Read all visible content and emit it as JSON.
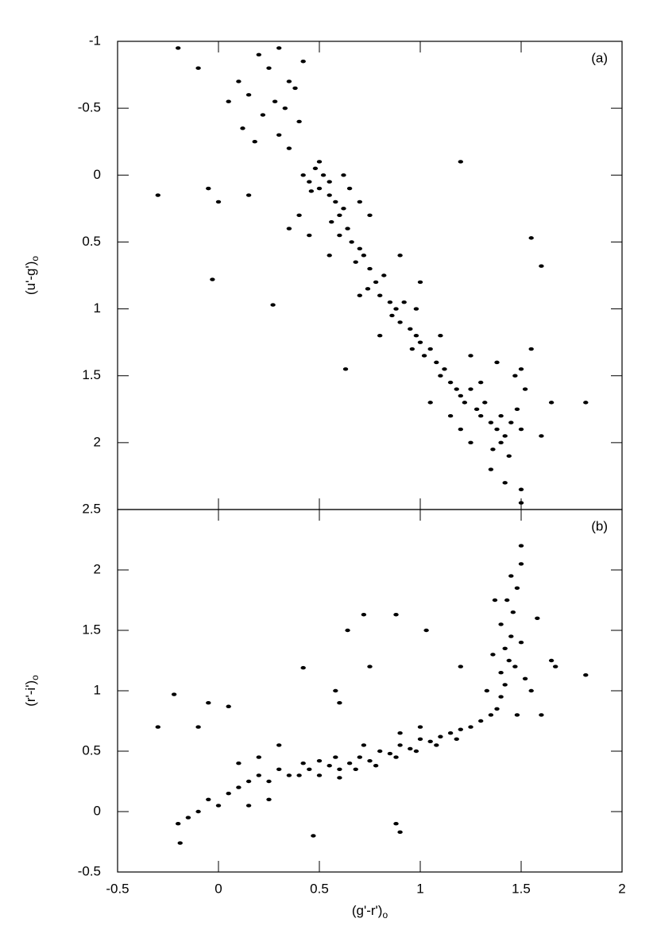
{
  "chart_data": [
    {
      "type": "scatter",
      "label": "(a)",
      "y_label": "(u'-g')",
      "y_label_sub": "o",
      "y_inverted": true,
      "xlim": [
        -0.5,
        2
      ],
      "ylim": [
        -1,
        2.5
      ],
      "yticks": [
        -1,
        -0.5,
        0,
        0.5,
        1,
        1.5,
        2,
        2.5
      ],
      "color": "#000000",
      "x": [
        0.2,
        0.25,
        0.3,
        0.35,
        0.15,
        0.28,
        0.33,
        0.38,
        0.22,
        0.3,
        0.1,
        0.05,
        0.4,
        0.42,
        -0.2,
        -0.1,
        0.18,
        0.12,
        -0.05,
        0.0,
        0.15,
        -0.3,
        -0.03,
        0.27,
        0.63,
        1.2,
        1.55,
        1.6,
        1.82,
        0.35,
        0.42,
        0.45,
        0.48,
        0.5,
        0.52,
        0.55,
        0.46,
        0.5,
        0.55,
        0.58,
        0.6,
        0.62,
        0.56,
        0.64,
        0.66,
        0.6,
        0.7,
        0.68,
        0.72,
        0.75,
        0.78,
        0.74,
        0.8,
        0.82,
        0.85,
        0.88,
        0.9,
        0.86,
        0.92,
        0.95,
        0.98,
        1.0,
        0.96,
        1.02,
        1.05,
        1.08,
        1.1,
        1.12,
        1.15,
        1.18,
        1.2,
        1.22,
        1.25,
        1.28,
        1.3,
        1.32,
        1.35,
        1.38,
        1.4,
        1.42,
        1.45,
        1.48,
        1.4,
        1.36,
        1.44,
        1.5,
        1.52,
        1.47,
        1.3,
        1.35,
        1.42,
        1.5,
        1.25,
        1.2,
        1.55,
        1.0,
        0.9,
        0.75,
        0.65,
        0.55,
        0.7,
        0.8,
        1.05,
        1.15,
        0.4,
        0.45,
        0.35,
        0.62,
        0.7,
        1.25,
        1.38,
        1.5,
        0.98,
        1.1,
        1.6,
        1.65,
        1.5
      ],
      "values": [
        -0.9,
        -0.8,
        -0.95,
        -0.7,
        -0.6,
        -0.55,
        -0.5,
        -0.65,
        -0.45,
        -0.3,
        -0.7,
        -0.55,
        -0.4,
        -0.85,
        -0.95,
        -0.8,
        -0.25,
        -0.35,
        0.1,
        0.2,
        0.15,
        0.15,
        0.78,
        0.97,
        1.45,
        -0.1,
        0.47,
        0.68,
        1.7,
        -0.2,
        0.0,
        0.05,
        -0.05,
        0.1,
        0.0,
        0.15,
        0.12,
        -0.1,
        0.05,
        0.2,
        0.3,
        0.25,
        0.35,
        0.4,
        0.5,
        0.45,
        0.55,
        0.65,
        0.6,
        0.7,
        0.8,
        0.85,
        0.9,
        0.75,
        0.95,
        1.0,
        1.1,
        1.05,
        0.95,
        1.15,
        1.2,
        1.25,
        1.3,
        1.35,
        1.3,
        1.4,
        1.5,
        1.45,
        1.55,
        1.6,
        1.65,
        1.7,
        1.6,
        1.75,
        1.8,
        1.7,
        1.85,
        1.9,
        1.8,
        1.95,
        1.85,
        1.75,
        2.0,
        2.05,
        2.1,
        1.9,
        1.6,
        1.5,
        1.55,
        2.2,
        2.3,
        2.35,
        2.0,
        1.9,
        1.3,
        0.8,
        0.6,
        0.3,
        0.1,
        0.6,
        0.9,
        1.2,
        1.7,
        1.8,
        0.3,
        0.45,
        0.4,
        0.0,
        0.2,
        1.35,
        1.4,
        1.45,
        1.0,
        1.2,
        1.95,
        1.7,
        2.45
      ]
    },
    {
      "type": "scatter",
      "label": "(b)",
      "y_label": "(r'-i')",
      "y_label_sub": "o",
      "x_label": "(g'-r')",
      "x_label_sub": "o",
      "xlim": [
        -0.5,
        2
      ],
      "xticks": [
        -0.5,
        0,
        0.5,
        1,
        1.5,
        2
      ],
      "ylim": [
        -0.5,
        2.5
      ],
      "yticks": [
        -0.5,
        0,
        0.5,
        1,
        1.5,
        2
      ],
      "color": "#000000",
      "x": [
        -0.2,
        -0.15,
        -0.1,
        -0.05,
        0.0,
        0.05,
        0.1,
        0.15,
        0.2,
        0.25,
        0.3,
        0.35,
        0.1,
        0.2,
        0.3,
        0.15,
        0.25,
        -0.19,
        0.47,
        0.9,
        0.88,
        -0.3,
        -0.22,
        -0.1,
        -0.05,
        0.05,
        0.4,
        0.45,
        0.5,
        0.55,
        0.6,
        0.65,
        0.7,
        0.75,
        0.8,
        0.85,
        0.9,
        0.95,
        1.0,
        1.05,
        1.1,
        1.15,
        1.2,
        1.25,
        1.3,
        1.35,
        0.42,
        0.5,
        0.58,
        0.68,
        0.78,
        0.88,
        0.98,
        1.08,
        1.18,
        0.6,
        0.72,
        0.9,
        1.0,
        1.38,
        1.4,
        1.42,
        1.4,
        1.44,
        1.42,
        1.45,
        1.4,
        1.46,
        1.43,
        1.48,
        1.45,
        1.5,
        1.5,
        1.36,
        1.5,
        1.52,
        1.55,
        1.33,
        1.48,
        1.58,
        1.6,
        1.65,
        1.67,
        1.82,
        1.47,
        0.42,
        0.64,
        0.72,
        0.88,
        1.03,
        0.58,
        0.75,
        0.6,
        1.2,
        1.37
      ],
      "values": [
        -0.1,
        -0.05,
        0.0,
        0.1,
        0.05,
        0.15,
        0.2,
        0.25,
        0.3,
        0.25,
        0.35,
        0.3,
        0.4,
        0.45,
        0.55,
        0.05,
        0.1,
        -0.26,
        -0.2,
        -0.17,
        -0.1,
        0.7,
        0.97,
        0.7,
        0.9,
        0.87,
        0.3,
        0.35,
        0.3,
        0.38,
        0.35,
        0.4,
        0.45,
        0.42,
        0.5,
        0.48,
        0.55,
        0.52,
        0.6,
        0.58,
        0.62,
        0.65,
        0.68,
        0.7,
        0.75,
        0.8,
        0.4,
        0.42,
        0.45,
        0.35,
        0.38,
        0.45,
        0.5,
        0.55,
        0.6,
        0.28,
        0.55,
        0.65,
        0.7,
        0.85,
        0.95,
        1.05,
        1.15,
        1.25,
        1.35,
        1.45,
        1.55,
        1.65,
        1.75,
        1.85,
        1.95,
        2.05,
        2.2,
        1.3,
        1.4,
        1.1,
        1.0,
        1.0,
        0.8,
        1.6,
        0.8,
        1.25,
        1.2,
        1.13,
        1.2,
        1.19,
        1.5,
        1.63,
        1.63,
        1.5,
        1.0,
        1.2,
        0.9,
        1.2,
        1.75
      ]
    }
  ]
}
